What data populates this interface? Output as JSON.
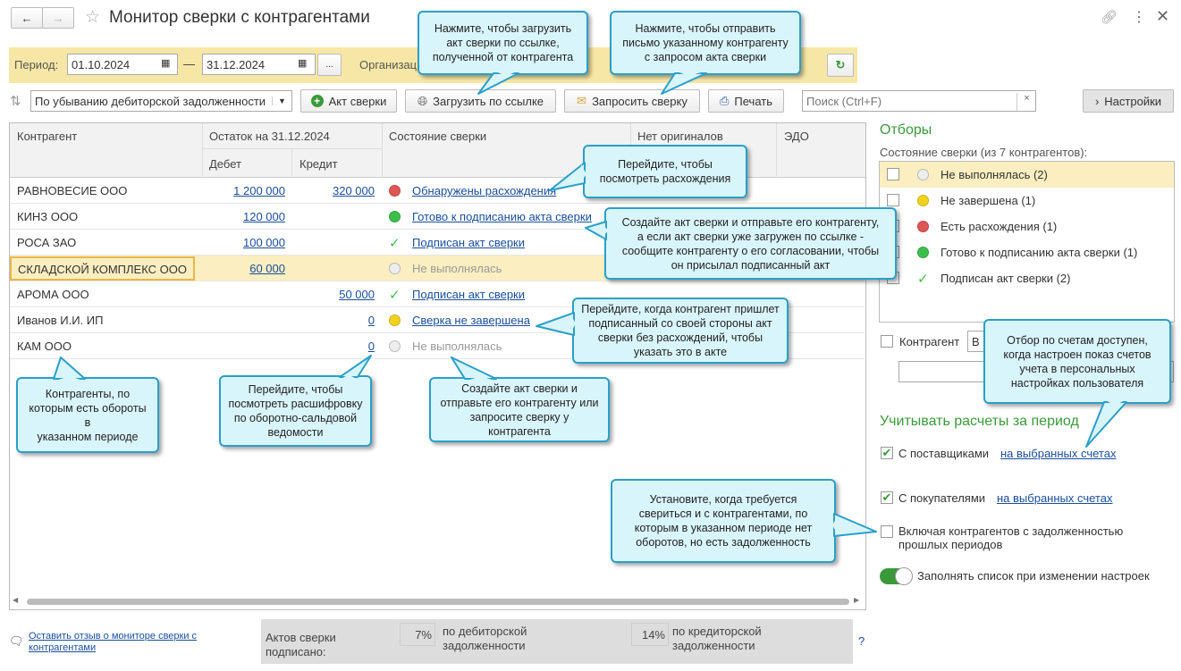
{
  "window": {
    "title": "Монитор сверки с контрагентами"
  },
  "period": {
    "label": "Период:",
    "from": "01.10.2024",
    "to": "31.12.2024",
    "dash": "—",
    "more": "...",
    "org_label": "Организац"
  },
  "toolbar": {
    "sort_value": "По убыванию дебиторской задолженности",
    "akt": "Акт сверки",
    "load": "Загрузить по ссылке",
    "request": "Запросить сверку",
    "print": "Печать",
    "search_placeholder": "Поиск (Ctrl+F)",
    "settings": "Настройки"
  },
  "table": {
    "headers": {
      "counterparty": "Контрагент",
      "balance": "Остаток на 31.12.2024",
      "debit": "Дебет",
      "credit": "Кредит",
      "status": "Состояние сверки",
      "no_originals": "Нет оригиналов",
      "edo": "ЭДО"
    },
    "rows": [
      {
        "name": "РАВНОВЕСИЕ ООО",
        "debit": "1 200 000",
        "credit": "320 000",
        "status": "Обнаружены расхождения",
        "state": "red"
      },
      {
        "name": "КИНЗ ООО",
        "debit": "120 000",
        "credit": "",
        "status": "Готово к подписанию акта сверки",
        "state": "green"
      },
      {
        "name": "РОСА ЗАО",
        "debit": "100 000",
        "credit": "",
        "status": "Подписан акт сверки",
        "state": "check"
      },
      {
        "name": "СКЛАДСКОЙ КОМПЛЕКС ООО",
        "debit": "60 000",
        "credit": "",
        "status": "Не выполнялась",
        "state": "grey"
      },
      {
        "name": "АРОМА ООО",
        "debit": "",
        "credit": "50 000",
        "status": "Подписан акт сверки",
        "state": "check"
      },
      {
        "name": "Иванов И.И. ИП",
        "debit": "",
        "credit": "0",
        "status": "Сверка не завершена",
        "state": "yellow"
      },
      {
        "name": "КАМ ООО",
        "debit": "",
        "credit": "0",
        "status": "Не выполнялась",
        "state": "grey"
      }
    ]
  },
  "filters": {
    "title": "Отборы",
    "subtitle": "Состояние сверки (из 7 контрагентов):",
    "items": [
      {
        "label": "Не выполнялась (2)",
        "state": "grey"
      },
      {
        "label": "Не завершена (1)",
        "state": "yellow"
      },
      {
        "label": "Есть расхождения (1)",
        "state": "red"
      },
      {
        "label": "Готово к подписанию акта сверки (1)",
        "state": "green"
      },
      {
        "label": "Подписан акт сверки (2)",
        "state": "check"
      }
    ],
    "counterparty_label": "Контрагент",
    "counterparty_value": "В"
  },
  "accounts": {
    "title": "Учитывать расчеты за период",
    "suppliers": "С поставщиками",
    "buyers": "С покупателями",
    "selected_accounts": "на выбранных счетах",
    "include_past": "Включая контрагентов с задолженностью прошлых периодов",
    "autofill": "Заполнять список при изменении настроек"
  },
  "footer": {
    "feedback": "Оставить отзыв о мониторе сверки с контрагентами",
    "signed_label": "Актов сверки подписано:",
    "debit_pct": "7%",
    "debit_label": "по дебиторской задолженности",
    "credit_pct": "14%",
    "credit_label": "по кредиторской задолженности",
    "help": "?"
  },
  "callouts": {
    "load": "Нажмите, чтобы загрузить\nакт сверки по ссылке,\nполученной от контрагента",
    "request": "Нажмите, чтобы отправить\nписьмо указанному контрагенту\nс запросом акта сверки",
    "diff": "Перейдите, чтобы\nпосмотреть расхождения",
    "create": "Создайте акт сверки и отправьте его контрагенту,\nа если акт сверки уже загружен по ссылке -\nсообщите контрагенту о его согласовании, чтобы\nон присылал подписанный акт",
    "signed": "Перейдите, когда контрагент пришлет\nподписанный со своей стороны акт\nсверки без расхождений, чтобы\nуказать это в акте",
    "turnover": "Контрагенты, по\nкоторым есть обороты в\nуказанном периоде",
    "osv": "Перейдите, чтобы\nпосмотреть расшифровку\nпо оборотно-сальдовой\nведомости",
    "notdone": "Создайте акт сверки и\nотправьте его контрагенту или\nзапросите сверку у\nконтрагента",
    "accounts": "Отбор по счетам доступен,\nкогда настроен показ счетов\nучета в персональных\nнастройках пользователя",
    "past": "Установите, когда требуется\nсвериться и с контрагентами, по\nкоторым в указанном периоде нет\nоборотов, но есть задолженность"
  },
  "colors": {
    "accent_green": "#3a9a3a",
    "highlight": "#fbeec0",
    "band": "#f7e7a6",
    "callout_fill": "#d9f5fc",
    "callout_border": "#2a9fc9",
    "red": "#e05555",
    "green": "#3cbf4a",
    "yellow": "#f2d21c"
  }
}
